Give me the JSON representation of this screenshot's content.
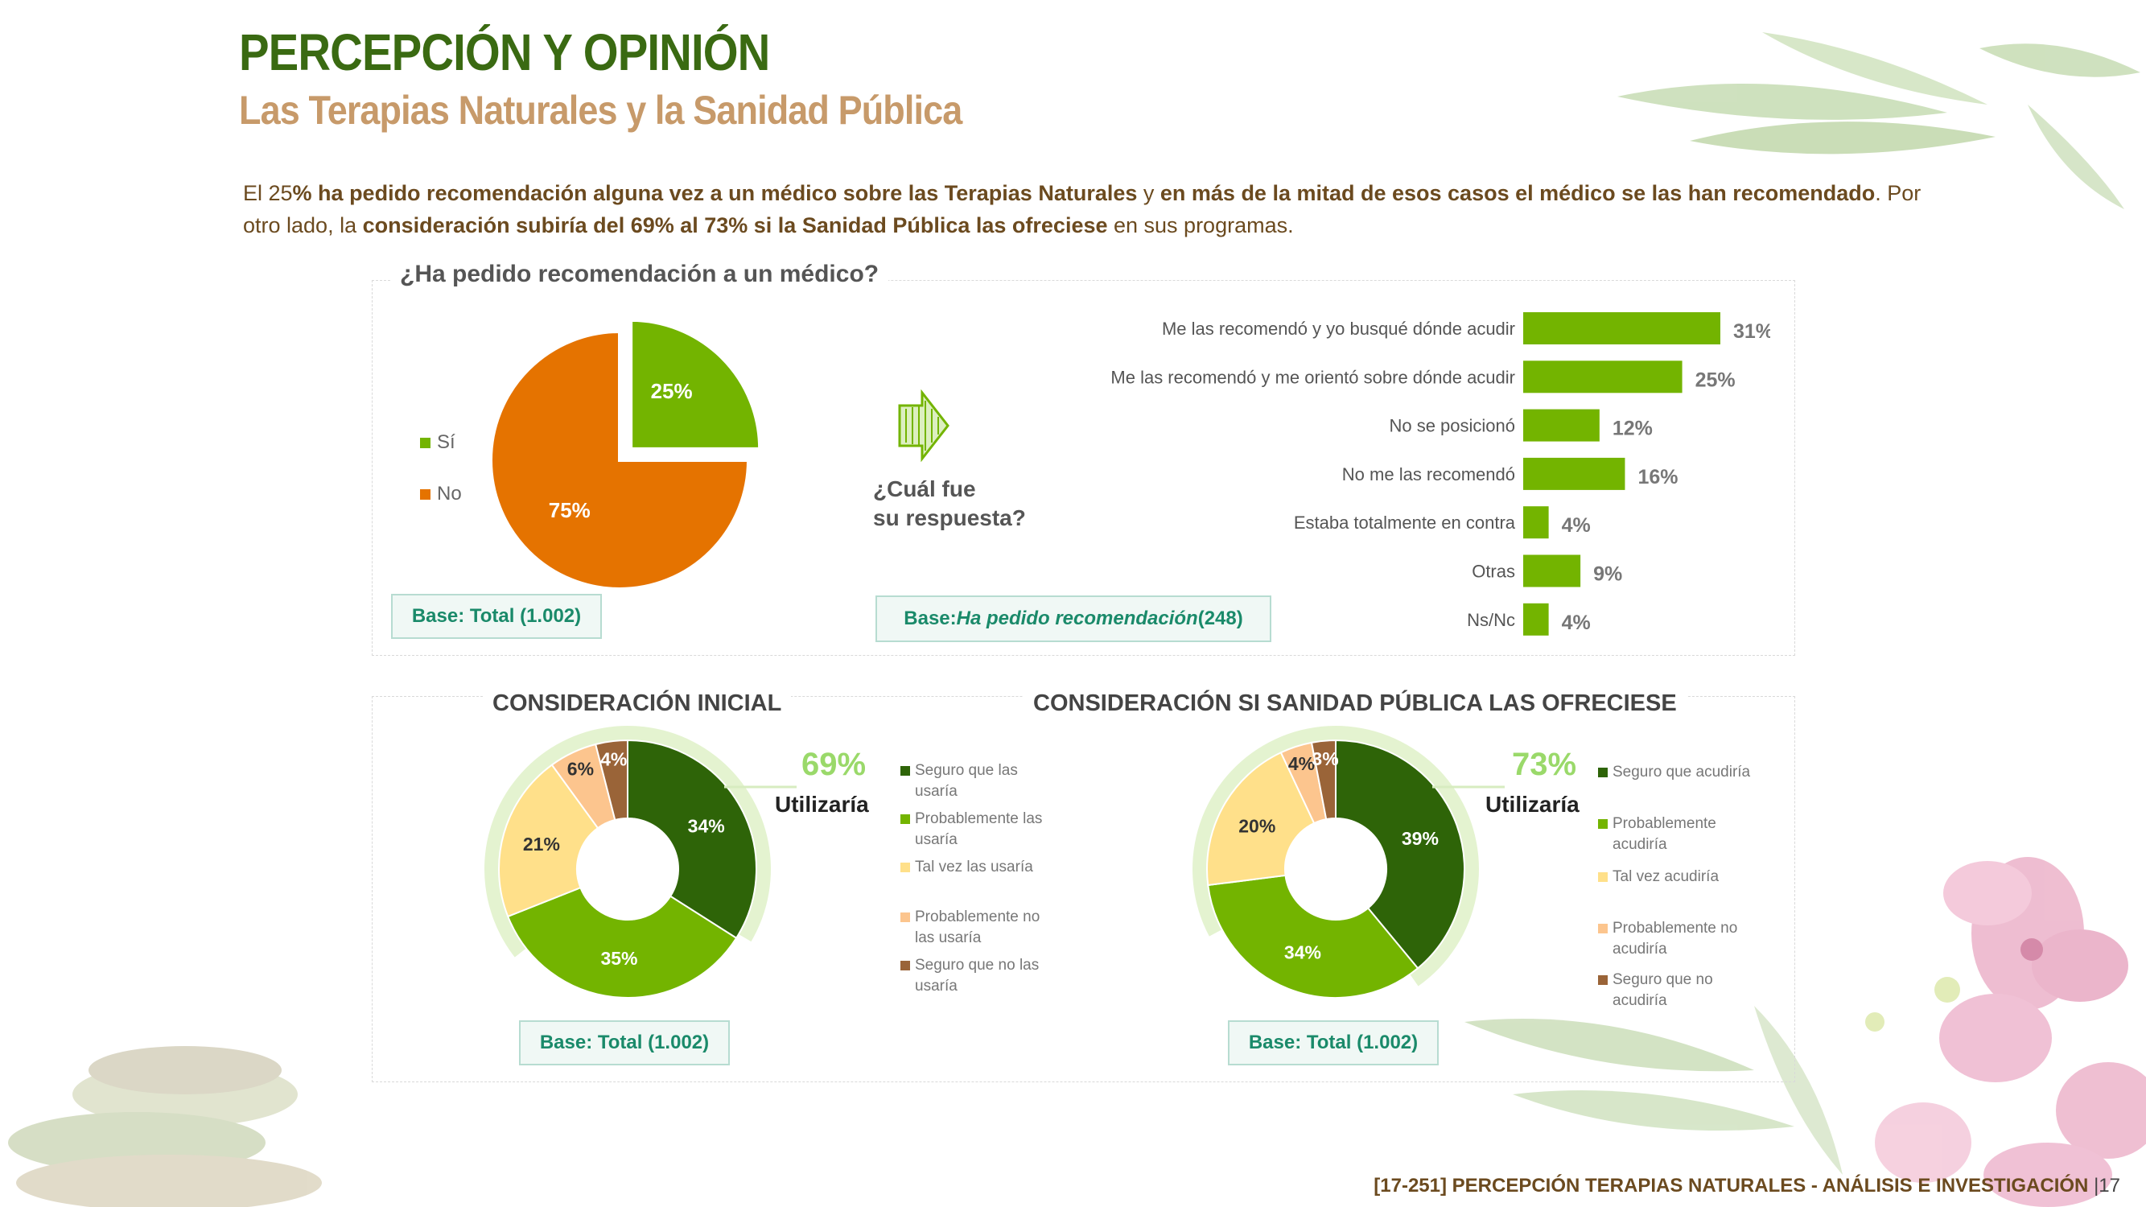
{
  "header": {
    "title": "PERCEPCIÓN Y OPINIÓN",
    "subtitle": "Las Terapias Naturales y la Sanidad Pública"
  },
  "intro": {
    "p1": "El 25",
    "p2": "% ha pedido recomendación alguna vez a un médico sobre las Terapias Naturales",
    "p3": " y ",
    "p4": "en más de la mitad de esos casos el médico se las han recomendado",
    "p5": ". Por otro lado, la ",
    "p6": "consideración subiría del 69% al 73% si la Sanidad Pública las ofreciese",
    "p7": " en sus programas."
  },
  "section1": {
    "question": "¿Ha pedido recomendación a un médico?",
    "base": "Base: Total (1.002)",
    "base2_prefix": "Base: ",
    "base2_italic": "Ha pedido recomendación",
    "base2_suffix": " (248)",
    "arrow_label_1": "¿Cuál fue",
    "arrow_label_2": "su respuesta?"
  },
  "section2": {
    "left_title": "CONSIDERACIÓN INICIAL",
    "right_title": "CONSIDERACIÓN SI SANIDAD PÚBLICA LAS OFRECIESE",
    "left_big": "69%",
    "left_util": "Utilizaría",
    "right_big": "73%",
    "right_util": "Utilizaría",
    "left_base": "Base: Total (1.002)",
    "right_base": "Base: Total (1.002)",
    "left_legend": [
      "Seguro que las usaría",
      "Probablemente las usaría",
      "Tal vez las usaría",
      "Probablemente no las usaría",
      "Seguro que no las usaría"
    ],
    "right_legend": [
      "Seguro que acudiría",
      "Probablemente acudiría",
      "Tal vez acudiría",
      "Probablemente no acudiría",
      "Seguro que no acudiría"
    ]
  },
  "footer": {
    "text": "[17-251] PERCEPCIÓN TERAPIAS NATURALES - ANÁLISIS E INVESTIGACIÓN",
    "page": "|17"
  },
  "colors": {
    "dark_green": "#2e6408",
    "green": "#73b400",
    "yellow": "#ffe08a",
    "peach": "#fcc58e",
    "brown": "#9a6438",
    "orange": "#e57300"
  },
  "chart_data": [
    {
      "type": "pie",
      "categories": [
        "Sí",
        "No"
      ],
      "values": [
        25,
        75
      ],
      "labels": [
        "25%",
        "75%"
      ],
      "colors": [
        "#73b400",
        "#e57300"
      ],
      "legend": "left"
    },
    {
      "type": "bar",
      "orientation": "horizontal",
      "categories": [
        "Me las recomendó y yo busqué dónde acudir",
        "Me las recomendó y me orientó sobre dónde acudir",
        "No se posicionó",
        "No me las recomendó",
        "Estaba totalmente en contra",
        "Otras",
        "Ns/Nc"
      ],
      "values": [
        31,
        25,
        12,
        16,
        4,
        9,
        4
      ],
      "labels": [
        "31%",
        "25%",
        "12%",
        "16%",
        "4%",
        "9%",
        "4%"
      ]
    },
    {
      "type": "pie",
      "donut": true,
      "title": "CONSIDERACIÓN INICIAL",
      "categories": [
        "Seguro que las usaría",
        "Probablemente las usaría",
        "Tal vez las usaría",
        "Probablemente no las usaría",
        "Seguro que no las usaría"
      ],
      "values": [
        34,
        35,
        21,
        6,
        4
      ],
      "labels": [
        "34%",
        "35%",
        "21%",
        "6%",
        "4%"
      ],
      "legend": "right"
    },
    {
      "type": "pie",
      "donut": true,
      "title": "CONSIDERACIÓN SI SANIDAD PÚBLICA LAS OFRECIESE",
      "categories": [
        "Seguro que acudiría",
        "Probablemente acudiría",
        "Tal vez acudiría",
        "Probablemente no acudiría",
        "Seguro que no acudiría"
      ],
      "values": [
        39,
        34,
        20,
        4,
        3
      ],
      "labels": [
        "39%",
        "34%",
        "20%",
        "4%",
        "3%"
      ],
      "legend": "right"
    }
  ]
}
